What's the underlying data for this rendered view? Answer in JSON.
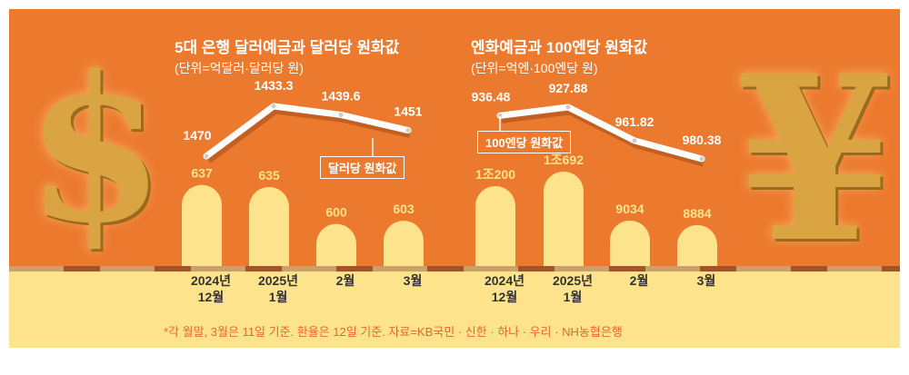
{
  "chart_data": [
    {
      "type": "bar+line",
      "title": "5대 은행 달러예금과 달러당 원화값",
      "unit": "(단위=억달러·달러당 원)",
      "categories": [
        [
          "2024년",
          "12월"
        ],
        [
          "2025년",
          "1월"
        ],
        [
          "2월",
          ""
        ],
        [
          "3월",
          ""
        ]
      ],
      "bar_values": [
        637,
        635,
        600,
        603
      ],
      "bar_labels": [
        "637",
        "635",
        "600",
        "603"
      ],
      "line_name": "달러당 원화값",
      "line_values": [
        1470,
        1433.3,
        1439.6,
        1451
      ],
      "line_labels": [
        "1470",
        "1433.3",
        "1439.6",
        "1451"
      ]
    },
    {
      "type": "bar+line",
      "title": "엔화예금과 100엔당 원화값",
      "unit": "(단위=억엔·100엔당 원)",
      "categories": [
        [
          "2024년",
          "12월"
        ],
        [
          "2025년",
          "1월"
        ],
        [
          "2월",
          ""
        ],
        [
          "3월",
          ""
        ]
      ],
      "bar_values": [
        10200,
        10692,
        9034,
        8884
      ],
      "bar_labels": [
        "1조200",
        "1조692",
        "9034",
        "8884"
      ],
      "line_name": "100엔당 원화값",
      "line_values": [
        936.48,
        927.88,
        961.82,
        980.38
      ],
      "line_labels": [
        "936.48",
        "927.88",
        "961.82",
        "980.38"
      ]
    }
  ],
  "note": "*각 월말, 3월은 11일 기준. 환율은 12일 기준. 자료=KB국민 · 신한 · 하나 · 우리 · NH농협은행",
  "colors": {
    "bg": "#ec7a2e",
    "bar": "#fde48c",
    "barlabel": "#fde48c",
    "ground": "#fde48c"
  }
}
